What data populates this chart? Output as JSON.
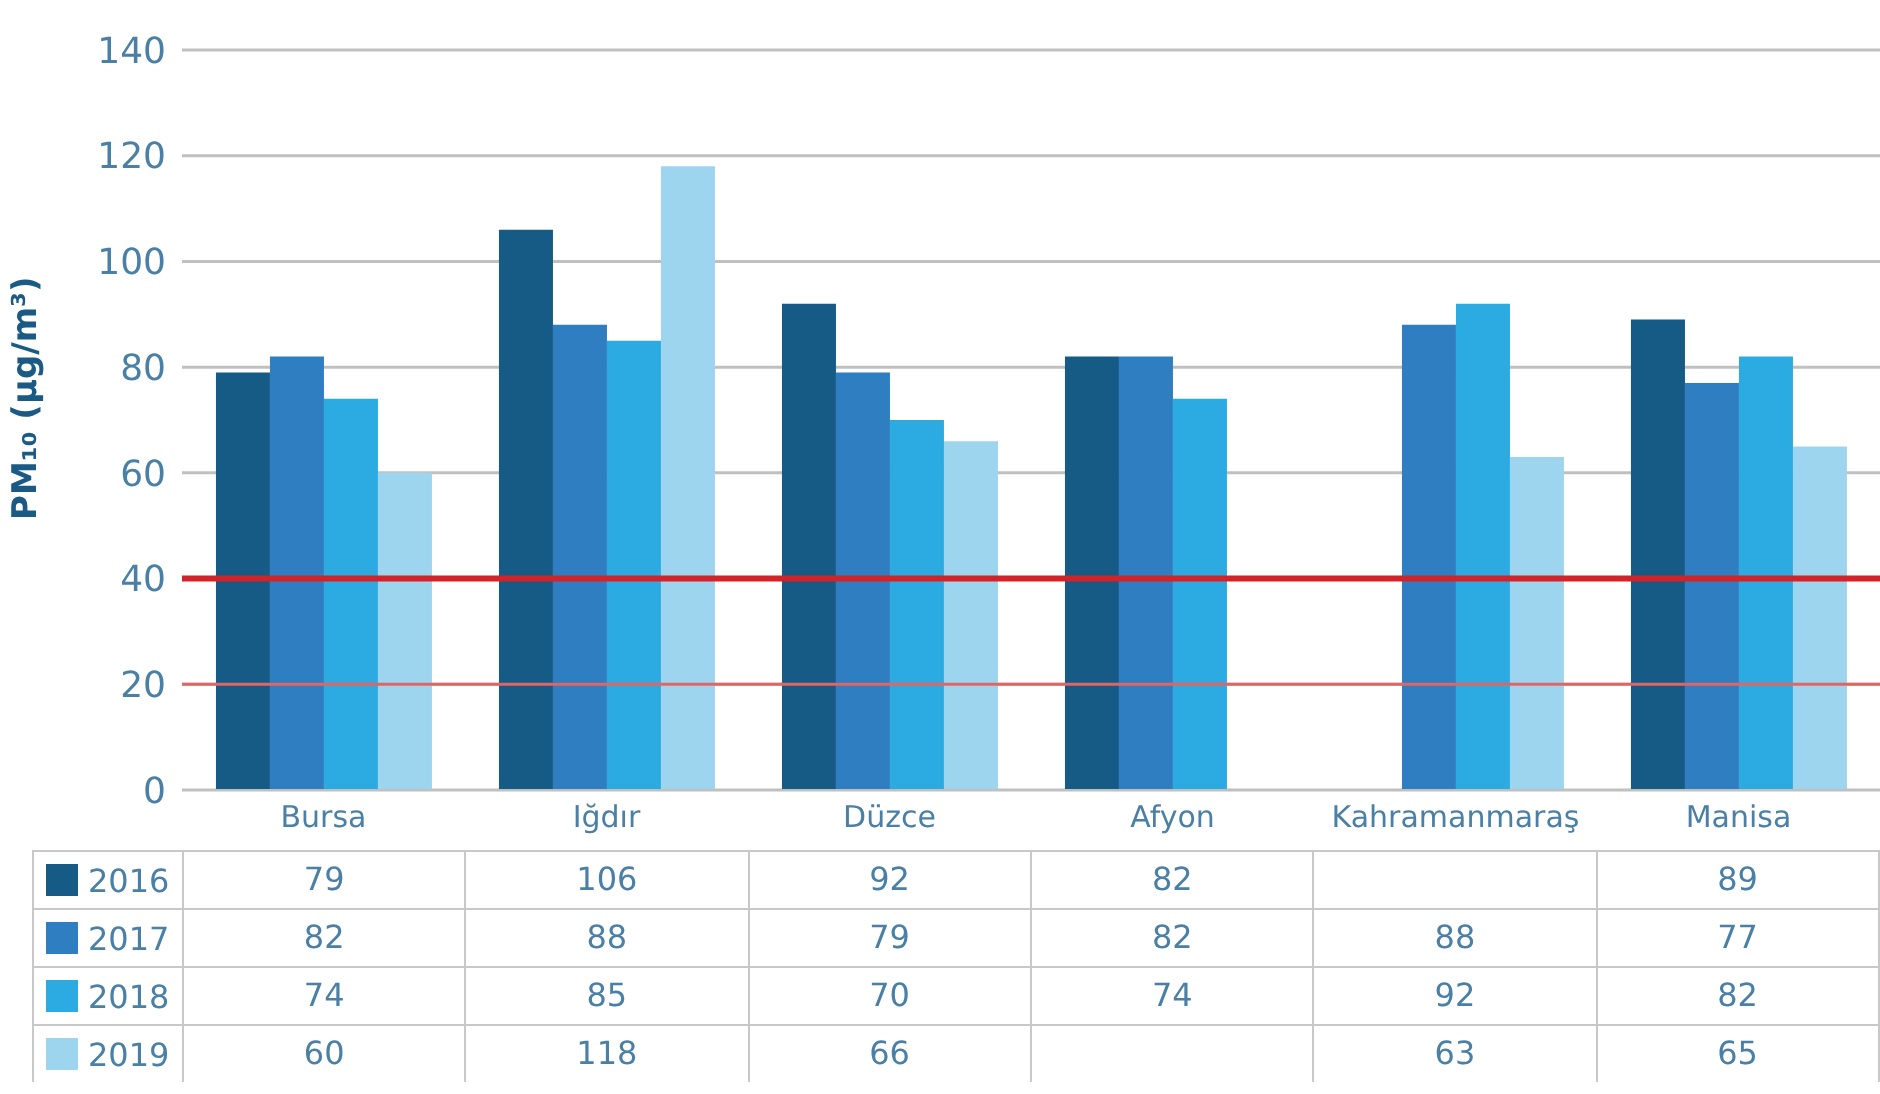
{
  "chart_data": {
    "type": "bar",
    "ylabel": "PM₁₀ (µg/m³)",
    "categories": [
      "Bursa",
      "Iğdır",
      "Düzce",
      "Afyon",
      "Kahramanmaraş",
      "Manisa"
    ],
    "series": [
      {
        "name": "2016",
        "color": "#165a86",
        "values": [
          79,
          106,
          92,
          82,
          null,
          89
        ]
      },
      {
        "name": "2017",
        "color": "#2e7ec1",
        "values": [
          82,
          88,
          79,
          82,
          88,
          77
        ]
      },
      {
        "name": "2018",
        "color": "#2cabe2",
        "values": [
          74,
          85,
          70,
          74,
          92,
          82
        ]
      },
      {
        "name": "2019",
        "color": "#9dd5ef",
        "values": [
          60,
          118,
          66,
          null,
          63,
          65
        ]
      }
    ],
    "ylim": [
      0,
      140
    ],
    "yticks": [
      0,
      20,
      40,
      60,
      80,
      100,
      120,
      140
    ],
    "grid": "y",
    "ref_lines": [
      {
        "axis": "y",
        "value": 40,
        "color": "#d2232a"
      },
      {
        "axis": "y",
        "value": 20,
        "color": "#e06666"
      }
    ],
    "legend": "bottom left",
    "data_labels": true
  }
}
